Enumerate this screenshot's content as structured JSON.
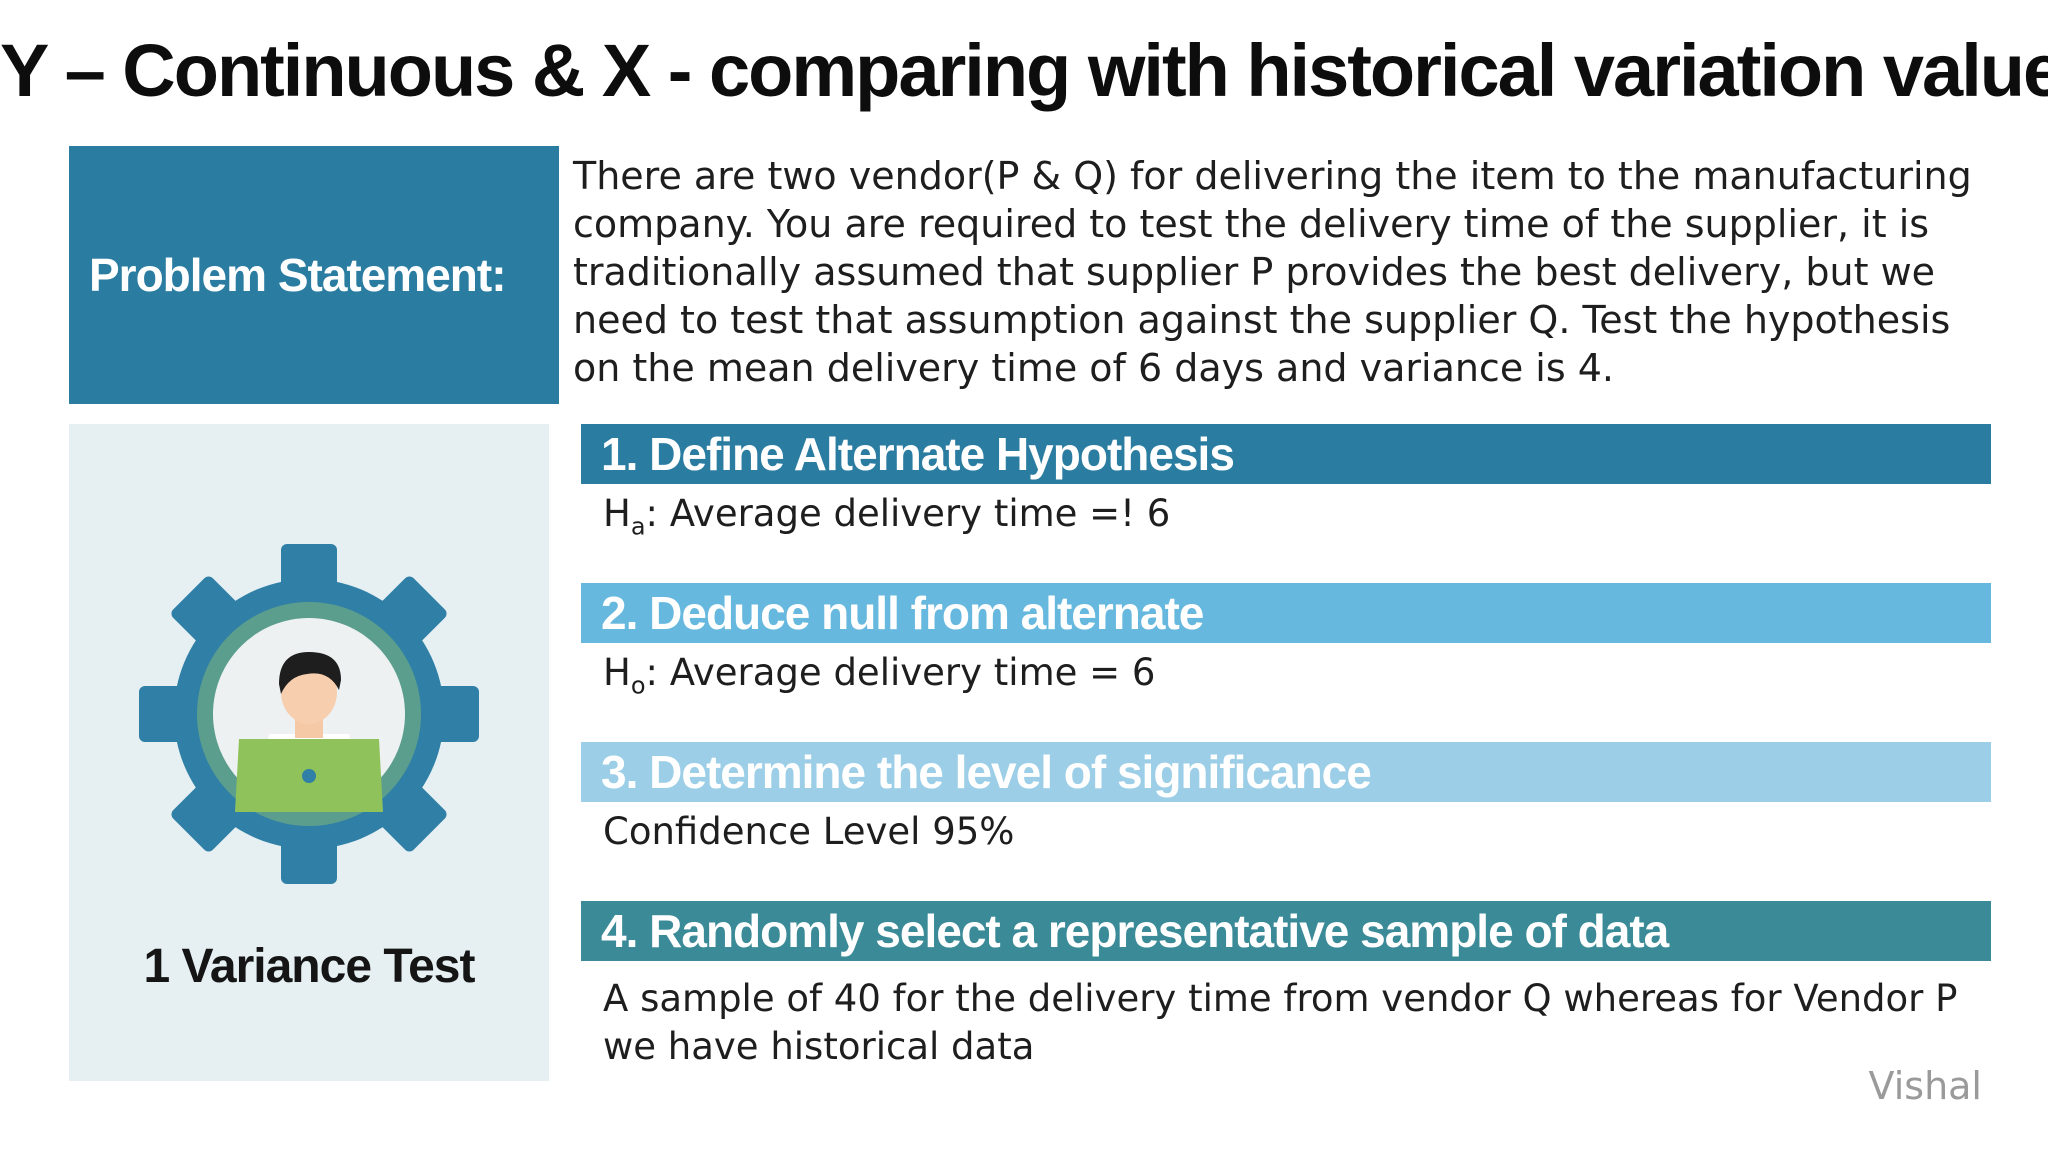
{
  "title": "Y – Continuous & X - comparing with historical variation value",
  "problem": {
    "label": "Problem Statement:",
    "text": "There are two vendor(P & Q) for delivering the item to the manufacturing company. You are required to test the delivery time of the supplier, it is traditionally assumed that supplier P provides the best delivery, but we need to test that assumption against the supplier Q. Test the hypothesis on the mean delivery time of 6 days and variance is 4."
  },
  "panel": {
    "caption": "1 Variance Test",
    "icon": "gear-person-laptop-icon"
  },
  "steps": [
    {
      "heading": "1. Define Alternate Hypothesis",
      "symbol": "H",
      "sub": "a",
      "body": ": Average delivery time =! 6",
      "color": "#2a7ca1"
    },
    {
      "heading": "2. Deduce null from alternate",
      "symbol": "H",
      "sub": "o",
      "body": ": Average delivery time = 6",
      "color": "#67b8de"
    },
    {
      "heading": "3. Determine the level of significance",
      "body": "Confidence Level 95%",
      "color": "#9ccfe7"
    },
    {
      "heading": "4. Randomly select a representative sample of data",
      "body": "A sample of 40 for the delivery time from vendor Q whereas for Vendor P we have historical data",
      "color": "#3a8a98"
    }
  ],
  "watermark": "Vishal"
}
